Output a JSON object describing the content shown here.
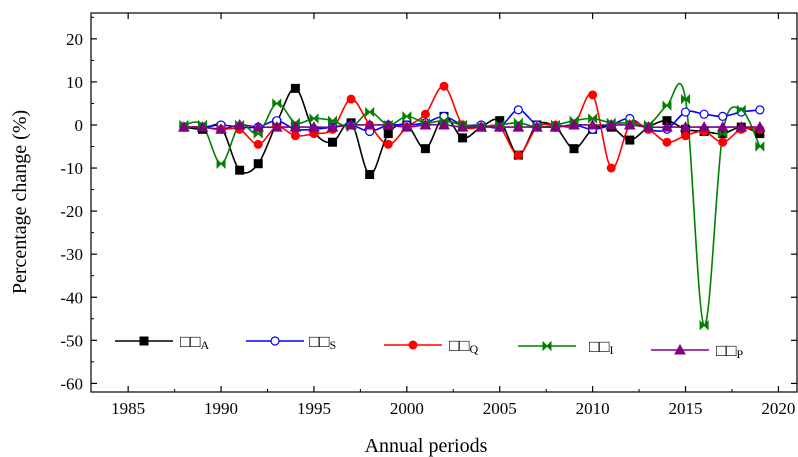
{
  "chart_data": {
    "type": "line",
    "title": "",
    "xlabel": "Annual periods",
    "ylabel": "Percentage change (%)",
    "xlim": [
      1983,
      2021
    ],
    "ylim": [
      -62,
      26
    ],
    "xticks": [
      1985,
      1990,
      1995,
      2000,
      2005,
      2010,
      2015,
      2020
    ],
    "yticks": [
      20,
      10,
      0,
      -10,
      -20,
      -30,
      -40,
      -50,
      -60
    ],
    "legend_position": "bottom",
    "x": [
      1988,
      1989,
      1990,
      1991,
      1992,
      1993,
      1994,
      1995,
      1996,
      1997,
      1998,
      1999,
      2000,
      2001,
      2002,
      2003,
      2004,
      2005,
      2006,
      2007,
      2008,
      2009,
      2010,
      2011,
      2012,
      2013,
      2014,
      2015,
      2016,
      2017,
      2018,
      2019
    ],
    "series": [
      {
        "name": "□□A",
        "label_main": "□□",
        "label_sub": "A",
        "color": "#000000",
        "marker": "square-filled",
        "values": [
          -0.5,
          -1,
          -0.5,
          -10.5,
          -9,
          0.5,
          8.5,
          -1.5,
          -4,
          0.5,
          -11.5,
          -2,
          0,
          -5.5,
          2,
          -3,
          -0.5,
          1,
          -7,
          0,
          -0.5,
          -5.5,
          -1,
          -0.5,
          -3.5,
          -0.5,
          1,
          -1,
          -1.5,
          -2,
          -0.5,
          -2
        ]
      },
      {
        "name": "□□S",
        "label_main": "□□",
        "label_sub": "S",
        "color": "#0000ff",
        "marker": "circle-open",
        "values": [
          -0.5,
          -0.5,
          0,
          -0.5,
          -0.5,
          1,
          -1,
          -1,
          -0.5,
          0,
          -1.5,
          0,
          0,
          0.5,
          2,
          0,
          0,
          -0.5,
          3.5,
          0,
          -0.5,
          0,
          -1,
          0,
          1.5,
          -1,
          -1,
          3,
          2.5,
          2,
          3,
          3.5
        ]
      },
      {
        "name": "□□Q",
        "label_main": "□□",
        "label_sub": "Q",
        "color": "#ff0000",
        "marker": "circle-filled",
        "values": [
          -0.5,
          -0.5,
          -1,
          -1,
          -4.5,
          -0.5,
          -2.5,
          -2,
          -1,
          6,
          0,
          -4.5,
          -0.5,
          2.5,
          9,
          0,
          -0.5,
          -0.5,
          -7,
          -0.5,
          0,
          0,
          7,
          -10,
          0,
          -1,
          -4,
          -2.5,
          -1.5,
          -4,
          -1,
          -1
        ]
      },
      {
        "name": "□□I",
        "label_main": "□□",
        "label_sub": "I",
        "color": "#008000",
        "marker": "bowtie",
        "values": [
          0,
          0,
          -9,
          0,
          -2,
          5,
          0.5,
          1.5,
          1,
          -0.5,
          3,
          0,
          2,
          0.5,
          1,
          0,
          -0.5,
          0,
          0.5,
          -0.5,
          0,
          1,
          1.5,
          0.5,
          0.5,
          0,
          4.5,
          6,
          -46.5,
          -2,
          3.5,
          -5
        ]
      },
      {
        "name": "□□P",
        "label_main": "□□",
        "label_sub": "P",
        "color": "#800080",
        "marker": "triangle-filled",
        "values": [
          -0.5,
          -0.5,
          -1,
          0,
          -0.5,
          -0.5,
          -0.5,
          -0.5,
          -0.5,
          0,
          0,
          0,
          -0.5,
          0,
          0,
          -0.5,
          -0.5,
          -0.5,
          -0.5,
          -0.5,
          -0.5,
          0,
          0,
          0,
          0,
          -0.5,
          -0.5,
          -0.5,
          -0.5,
          -0.5,
          -0.5,
          -0.5
        ]
      }
    ]
  }
}
